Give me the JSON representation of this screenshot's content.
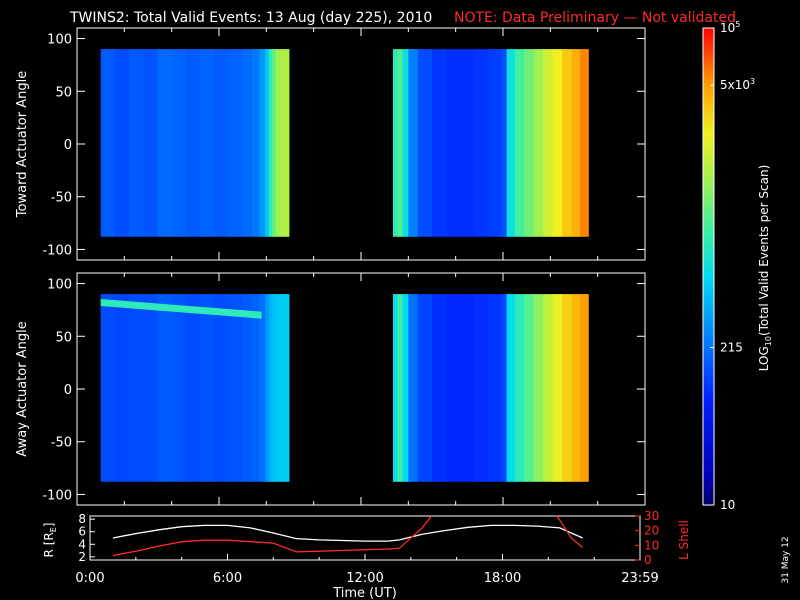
{
  "header": {
    "title": "TWINS2: Total Valid Events: 13 Aug (day 225), 2010",
    "note": "NOTE: Data Preliminary — Not validated"
  },
  "stamp": "31 May 12",
  "colors": {
    "background": "#000000",
    "axis": "#ffffff",
    "note": "#ff2a2a",
    "r_line": "#ffffff",
    "lshell_line": "#ff2a2a"
  },
  "chart_data": [
    {
      "type": "heatmap",
      "name": "toward",
      "ylabel": "Toward Actuator Angle",
      "ylim": [
        -110,
        110
      ],
      "yticks": [
        100,
        50,
        0,
        -50,
        -100
      ],
      "xlim_hours": [
        0,
        24
      ],
      "angle_range": [
        -88,
        90
      ],
      "blocks": [
        {
          "start": 1.0,
          "end": 8.95,
          "columns": [
            [
              1.0,
              0.3
            ],
            [
              1.6,
              0.28
            ],
            [
              2.2,
              0.3
            ],
            [
              2.8,
              0.29
            ],
            [
              3.4,
              0.32
            ],
            [
              4.0,
              0.31
            ],
            [
              4.6,
              0.3
            ],
            [
              5.2,
              0.31
            ],
            [
              5.8,
              0.3
            ],
            [
              6.4,
              0.31
            ],
            [
              7.0,
              0.32
            ],
            [
              7.4,
              0.34
            ],
            [
              7.7,
              0.38
            ],
            [
              7.95,
              0.45
            ],
            [
              8.1,
              0.55
            ],
            [
              8.25,
              0.62
            ],
            [
              8.4,
              0.68
            ],
            [
              8.6,
              0.7
            ]
          ]
        },
        {
          "start": 13.35,
          "end": 21.6,
          "columns": [
            [
              13.35,
              0.55
            ],
            [
              13.55,
              0.6
            ],
            [
              13.75,
              0.5
            ],
            [
              14.0,
              0.35
            ],
            [
              14.4,
              0.28
            ],
            [
              15.0,
              0.25
            ],
            [
              15.6,
              0.24
            ],
            [
              16.2,
              0.24
            ],
            [
              16.8,
              0.25
            ],
            [
              17.4,
              0.26
            ],
            [
              17.9,
              0.28
            ],
            [
              18.15,
              0.5
            ],
            [
              18.5,
              0.58
            ],
            [
              18.9,
              0.63
            ],
            [
              19.3,
              0.68
            ],
            [
              19.7,
              0.74
            ],
            [
              20.1,
              0.78
            ],
            [
              20.5,
              0.83
            ],
            [
              20.9,
              0.86
            ],
            [
              21.25,
              0.9
            ]
          ]
        }
      ]
    },
    {
      "type": "heatmap",
      "name": "away",
      "ylabel": "Away Actuator Angle",
      "ylim": [
        -110,
        110
      ],
      "yticks": [
        100,
        50,
        0,
        -50,
        -100
      ],
      "xlim_hours": [
        0,
        24
      ],
      "angle_range": [
        -88,
        90
      ],
      "band": {
        "from_hour": 1.0,
        "to_hour": 7.8,
        "angle_start": 82,
        "angle_end": 70,
        "value": 0.55
      },
      "blocks": [
        {
          "start": 1.0,
          "end": 8.95,
          "columns": [
            [
              1.0,
              0.28
            ],
            [
              1.6,
              0.27
            ],
            [
              2.2,
              0.28
            ],
            [
              2.8,
              0.28
            ],
            [
              3.4,
              0.3
            ],
            [
              4.0,
              0.29
            ],
            [
              4.6,
              0.28
            ],
            [
              5.2,
              0.29
            ],
            [
              5.8,
              0.28
            ],
            [
              6.4,
              0.29
            ],
            [
              7.0,
              0.3
            ],
            [
              7.4,
              0.31
            ],
            [
              7.7,
              0.33
            ],
            [
              7.95,
              0.38
            ],
            [
              8.1,
              0.42
            ],
            [
              8.25,
              0.44
            ],
            [
              8.4,
              0.45
            ],
            [
              8.6,
              0.46
            ]
          ]
        },
        {
          "start": 13.35,
          "end": 21.6,
          "columns": [
            [
              13.35,
              0.5
            ],
            [
              13.55,
              0.58
            ],
            [
              13.75,
              0.48
            ],
            [
              14.0,
              0.33
            ],
            [
              14.4,
              0.27
            ],
            [
              15.0,
              0.24
            ],
            [
              15.6,
              0.23
            ],
            [
              16.2,
              0.23
            ],
            [
              16.8,
              0.24
            ],
            [
              17.4,
              0.25
            ],
            [
              17.9,
              0.27
            ],
            [
              18.15,
              0.48
            ],
            [
              18.5,
              0.55
            ],
            [
              18.9,
              0.6
            ],
            [
              19.3,
              0.66
            ],
            [
              19.7,
              0.72
            ],
            [
              20.1,
              0.77
            ],
            [
              20.5,
              0.82
            ],
            [
              20.9,
              0.85
            ],
            [
              21.25,
              0.88
            ]
          ]
        }
      ]
    },
    {
      "type": "line",
      "name": "orbit",
      "ylabel_left": "R [R",
      "ylabel_left_sub": "E",
      "ylabel_left_end": "]",
      "ylabel_right": "L Shell",
      "ylim_left": [
        1.5,
        8.5
      ],
      "yticks_left": [
        2,
        4,
        6,
        8
      ],
      "ylim_right": [
        0,
        30
      ],
      "yticks_right": [
        30,
        20,
        10,
        0
      ],
      "xlabel": "Time (UT)",
      "xticks": [
        {
          "hour": 0,
          "label": "0:00"
        },
        {
          "hour": 6,
          "label": "6:00"
        },
        {
          "hour": 12,
          "label": "12:00"
        },
        {
          "hour": 18,
          "label": "18:00"
        },
        {
          "hour": 24,
          "label": "23:59"
        }
      ],
      "series": [
        {
          "values": [
            [
              1,
              5.0
            ],
            [
              2,
              5.7
            ],
            [
              3,
              6.3
            ],
            [
              4,
              6.8
            ],
            [
              5,
              7.0
            ],
            [
              6,
              7.0
            ],
            [
              7,
              6.6
            ],
            [
              8,
              5.8
            ],
            [
              9,
              4.9
            ],
            [
              10,
              4.7
            ],
            [
              11,
              4.6
            ],
            [
              12,
              4.5
            ],
            [
              13,
              4.5
            ],
            [
              13.5,
              4.7
            ],
            [
              14.5,
              5.6
            ],
            [
              15.5,
              6.2
            ],
            [
              16.5,
              6.7
            ],
            [
              17.5,
              7.0
            ],
            [
              18.5,
              7.0
            ],
            [
              19.5,
              6.9
            ],
            [
              20.5,
              6.6
            ],
            [
              21.5,
              5.0
            ]
          ]
        },
        {
          "values": [
            [
              1,
              3.0
            ],
            [
              2,
              6.0
            ],
            [
              3,
              9.5
            ],
            [
              4,
              12.5
            ],
            [
              5,
              13.5
            ],
            [
              6,
              13.5
            ],
            [
              7,
              12.5
            ],
            [
              8,
              11.5
            ],
            [
              9,
              5.5
            ],
            [
              10,
              6.0
            ],
            [
              11,
              6.5
            ],
            [
              12,
              7.0
            ],
            [
              13,
              7.5
            ],
            [
              13.5,
              8.0
            ],
            [
              14.5,
              22.0
            ],
            [
              15.0,
              32.0
            ]
          ]
        },
        {
          "values": [
            [
              20.3,
              32.0
            ],
            [
              21.0,
              15.0
            ],
            [
              21.5,
              8.5
            ]
          ]
        }
      ]
    }
  ],
  "colorbar": {
    "label": "LOG",
    "label_sub": "10",
    "label_rest": "(Total Valid Events per Scan)",
    "ticks": [
      {
        "level": 1.0,
        "label": "10",
        "sup": "5"
      },
      {
        "level": 0.88,
        "label": "5x10",
        "sup": "3"
      },
      {
        "level": 0.33,
        "label": "215",
        "sup": ""
      },
      {
        "level": 0.0,
        "label": "10",
        "sup": ""
      }
    ]
  }
}
